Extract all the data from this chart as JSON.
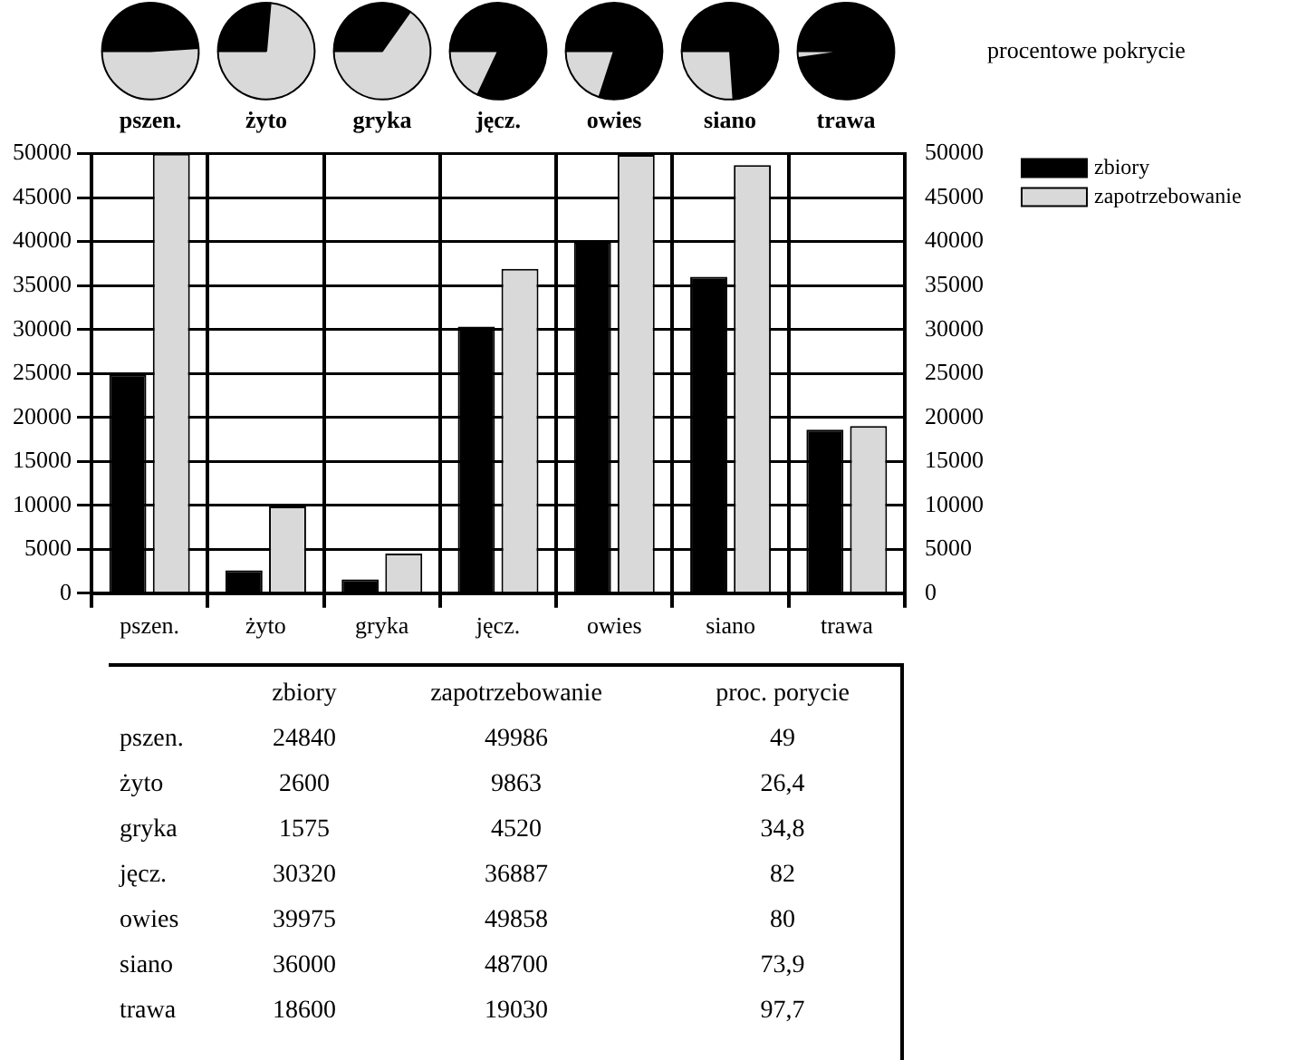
{
  "chart_data": [
    {
      "type": "bar",
      "categories": [
        "pszen.",
        "żyto",
        "gryka",
        "jęcz.",
        "owies",
        "siano",
        "trawa"
      ],
      "series": [
        {
          "name": "zbiory",
          "color": "#000000",
          "values": [
            24840,
            2600,
            1575,
            30320,
            39975,
            36000,
            18600
          ]
        },
        {
          "name": "zapotrzebowanie",
          "color": "#d9d9d9",
          "values": [
            49986,
            9863,
            4520,
            36887,
            49858,
            48700,
            19030
          ]
        }
      ],
      "ylim": [
        0,
        50000
      ],
      "yticks": [
        0,
        5000,
        10000,
        15000,
        20000,
        25000,
        30000,
        35000,
        40000,
        45000,
        50000
      ],
      "y2lim": [
        0,
        50000
      ],
      "y2ticks": [
        0,
        5000,
        10000,
        15000,
        20000,
        25000,
        30000,
        35000,
        40000,
        45000,
        50000
      ],
      "grid": true,
      "legend": "top right",
      "annotations": [
        "procentowe pokrycie",
        "proc. porycie",
        "24840",
        "49986",
        "49",
        "2600",
        "9863",
        "26,4",
        "1575",
        "4520",
        "34,8",
        "30320",
        "36887",
        "82",
        "39975",
        "49858",
        "80",
        "36000",
        "48700",
        "73,9",
        "18600",
        "19030",
        "97,7"
      ]
    },
    {
      "type": "pie",
      "title": "pszen.",
      "categories": [
        null,
        null
      ],
      "values": [
        49,
        51
      ],
      "colors": [
        "#000000",
        "#d9d9d9"
      ]
    },
    {
      "type": "pie",
      "title": "żyto",
      "categories": [
        null,
        null
      ],
      "values": [
        26.4,
        73.6
      ],
      "colors": [
        "#000000",
        "#d9d9d9"
      ]
    },
    {
      "type": "pie",
      "title": "gryka",
      "categories": [
        null,
        null
      ],
      "values": [
        34.8,
        65.2
      ],
      "colors": [
        "#000000",
        "#d9d9d9"
      ]
    },
    {
      "type": "pie",
      "title": "jęcz.",
      "categories": [
        null,
        null
      ],
      "values": [
        82,
        18
      ],
      "colors": [
        "#000000",
        "#d9d9d9"
      ]
    },
    {
      "type": "pie",
      "title": "owies",
      "categories": [
        null,
        null
      ],
      "values": [
        80,
        20
      ],
      "colors": [
        "#000000",
        "#d9d9d9"
      ]
    },
    {
      "type": "pie",
      "title": "siano",
      "categories": [
        null,
        null
      ],
      "values": [
        73.9,
        26.1
      ],
      "colors": [
        "#000000",
        "#d9d9d9"
      ]
    },
    {
      "type": "pie",
      "title": "trawa",
      "categories": [
        null,
        null
      ],
      "values": [
        97.7,
        2.3
      ],
      "colors": [
        "#000000",
        "#d9d9d9"
      ]
    }
  ]
}
